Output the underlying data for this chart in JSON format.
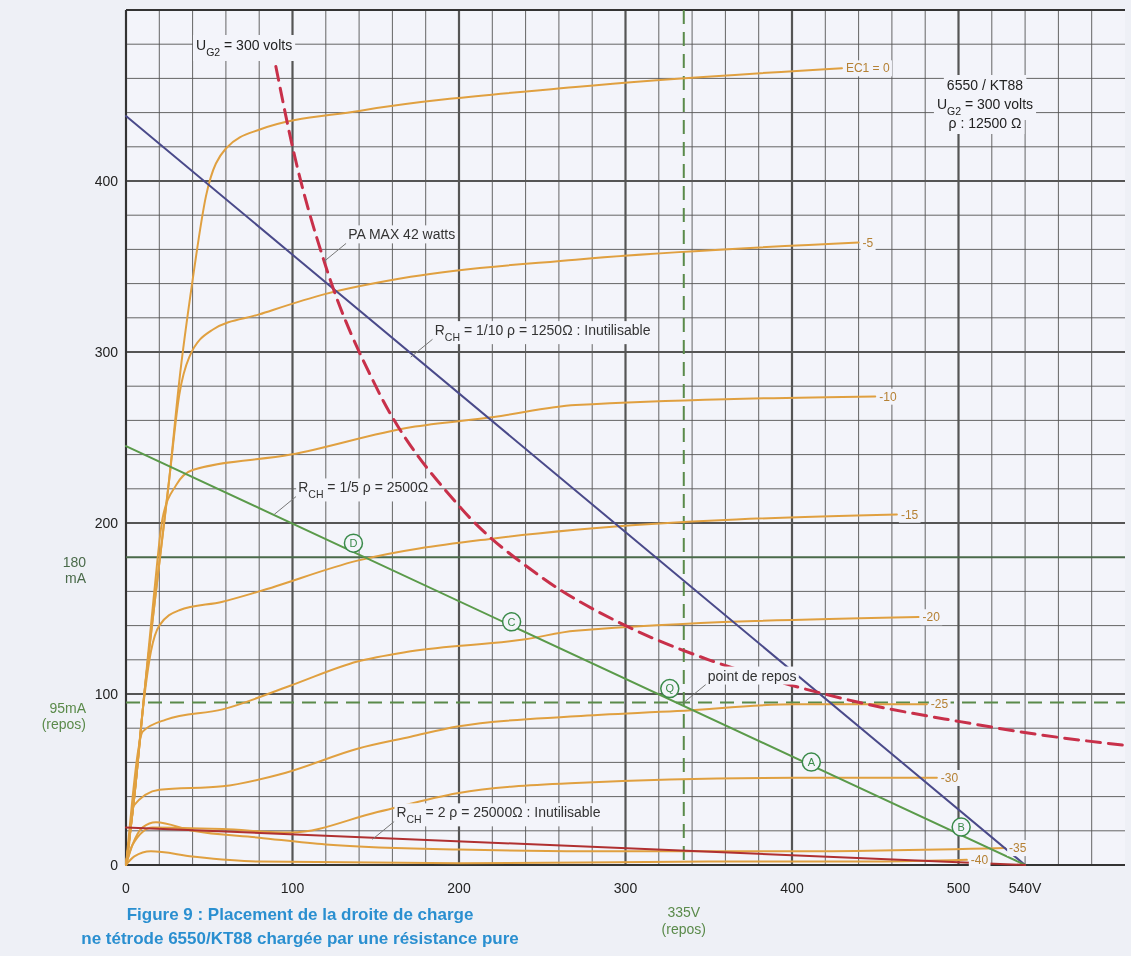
{
  "chart_data": {
    "type": "line",
    "title": "Figure 9 : Placement de la droite de charge",
    "subtitle": "ne tétrode 6550/KT88 chargée par une résistance pure",
    "xlim": [
      0,
      600
    ],
    "ylim": [
      0,
      500
    ],
    "grid": true,
    "xticks": [
      0,
      {
        "value": 20,
        "label": null
      },
      {
        "value": 40,
        "label": null
      },
      {
        "value": 60,
        "label": null
      },
      {
        "value": 80,
        "label": null
      },
      100,
      {
        "value": 120,
        "label": null
      },
      {
        "value": 140,
        "label": null
      },
      {
        "value": 160,
        "label": null
      },
      {
        "value": 180,
        "label": null
      },
      200,
      {
        "value": 220,
        "label": null
      },
      {
        "value": 240,
        "label": null
      },
      {
        "value": 260,
        "label": null
      },
      {
        "value": 280,
        "label": null
      },
      300,
      {
        "value": 320,
        "label": null
      },
      {
        "value": 340,
        "label": null
      },
      {
        "value": 360,
        "label": null
      },
      {
        "value": 380,
        "label": null
      },
      400,
      {
        "value": 420,
        "label": null
      },
      {
        "value": 440,
        "label": null
      },
      {
        "value": 460,
        "label": null
      },
      {
        "value": 480,
        "label": null
      },
      500,
      {
        "value": 520,
        "label": null
      },
      {
        "value": 540,
        "label": "540V"
      },
      {
        "value": 560,
        "label": null
      },
      {
        "value": 580,
        "label": null
      }
    ],
    "yticks": [
      0,
      {
        "value": 20,
        "label": null
      },
      {
        "value": 40,
        "label": null
      },
      {
        "value": 60,
        "label": null
      },
      {
        "value": 80,
        "label": null
      },
      100,
      {
        "value": 120,
        "label": null
      },
      {
        "value": 140,
        "label": null
      },
      {
        "value": 160,
        "label": null
      },
      {
        "value": 180,
        "label": null
      },
      200,
      {
        "value": 220,
        "label": null
      },
      {
        "value": 240,
        "label": null
      },
      {
        "value": 260,
        "label": null
      },
      {
        "value": 280,
        "label": null
      },
      300,
      {
        "value": 320,
        "label": null
      },
      {
        "value": 340,
        "label": null
      },
      {
        "value": 360,
        "label": null
      },
      {
        "value": 380,
        "label": null
      },
      400,
      {
        "value": 420,
        "label": null
      },
      {
        "value": 440,
        "label": null
      },
      {
        "value": 460,
        "label": null
      },
      {
        "value": 480,
        "label": null
      },
      {
        "value": 500,
        "label": null
      }
    ],
    "series": [
      {
        "name": "EC1 = 0",
        "color": "#e0a040",
        "x": [
          0,
          5,
          11,
          18,
          26,
          32,
          40,
          48,
          60,
          80,
          140,
          270,
          430
        ],
        "values": [
          0,
          40,
          100,
          160,
          226,
          283,
          342,
          391,
          419,
          430,
          441,
          455,
          466
        ]
      },
      {
        "name": "-5",
        "color": "#e0a040",
        "x": [
          0,
          5,
          11,
          18,
          26,
          32,
          38,
          52,
          80,
          120,
          171,
          270,
          440
        ],
        "values": [
          0,
          40,
          100,
          160,
          226,
          275,
          297,
          313,
          322,
          334,
          344,
          354,
          364
        ]
      },
      {
        "name": "-10",
        "color": "#e0a040",
        "x": [
          0,
          5,
          11,
          17,
          22,
          30,
          40,
          99,
          171,
          221,
          270,
          450
        ],
        "values": [
          0,
          40,
          100,
          160,
          203,
          222,
          231,
          240,
          256,
          262,
          269,
          274
        ]
      },
      {
        "name": "-15",
        "color": "#e0a040",
        "x": [
          0,
          5,
          10,
          15,
          20,
          32,
          58,
          80,
          139,
          221,
          270,
          463
        ],
        "values": [
          0,
          40,
          90,
          125,
          140,
          149,
          154,
          160,
          178,
          191,
          196,
          205
        ]
      },
      {
        "name": "-20",
        "color": "#e0a040",
        "x": [
          0,
          4,
          7,
          10,
          24,
          58,
          99,
          139,
          171,
          240,
          270,
          476
        ],
        "values": [
          0,
          40,
          65,
          78,
          85,
          91,
          105,
          119,
          125,
          132,
          137,
          145
        ]
      },
      {
        "name": "-25",
        "color": "#e0a040",
        "x": [
          0,
          2,
          4,
          20,
          58,
          96,
          139,
          171,
          199,
          270,
          331,
          402,
          481
        ],
        "values": [
          0,
          13,
          34,
          44,
          46,
          54,
          68,
          75,
          81,
          87,
          90,
          94,
          94
        ]
      },
      {
        "name": "-30",
        "color": "#e0a040",
        "x": [
          0,
          4,
          16,
          58,
          99,
          151,
          199,
          270,
          402,
          487
        ],
        "values": [
          0,
          12,
          22,
          21,
          19,
          31,
          42,
          48,
          51,
          51
        ]
      },
      {
        "name": "-35",
        "color": "#e0a040",
        "x": [
          0,
          4,
          10,
          18,
          40,
          80,
          120,
          200,
          300,
          400,
          528
        ],
        "values": [
          0,
          12,
          22,
          25,
          20,
          16,
          12,
          9,
          8,
          8,
          10
        ]
      },
      {
        "name": "-40",
        "color": "#e0a040",
        "x": [
          0,
          5,
          15,
          40,
          80,
          200,
          350,
          450,
          505
        ],
        "values": [
          0,
          5,
          8,
          5,
          2,
          1,
          2,
          2,
          3
        ]
      },
      {
        "color": "#4a4a8a",
        "x": [
          0,
          540
        ],
        "values": [
          438,
          0
        ]
      },
      {
        "color": "#5a9a4a",
        "x": [
          0,
          540
        ],
        "values": [
          245,
          0
        ]
      },
      {
        "color": "#b03030",
        "x": [
          0,
          540
        ],
        "values": [
          22,
          0
        ]
      },
      {
        "color": "#c8304a",
        "line_style": "dashed",
        "x": [
          90,
          100,
          120,
          150,
          200,
          250,
          300,
          350,
          400,
          450,
          500,
          550,
          600
        ],
        "values": [
          467,
          420,
          350,
          280,
          210,
          168,
          140,
          120,
          105,
          93,
          84,
          76,
          70
        ]
      }
    ],
    "ref_lines": [
      {
        "axis": "y",
        "value": 95,
        "label": "95mA (repos)",
        "color": "#5a8a4a",
        "line_style": "dashed"
      },
      {
        "axis": "x",
        "value": 335,
        "label": "335V (repos)",
        "color": "#5a8a4a",
        "line_style": "dashed"
      },
      {
        "axis": "y",
        "value": 180,
        "label": "180 mA",
        "color": "#4a6a4a",
        "line_style": "solid"
      }
    ],
    "annotations": [
      "U$_{G2}$ = 300 volts",
      "6550 / KT88\nU$_{G2}$ = 300 volts\nρ : 12500 Ω",
      {
        "text": "R$_{CH}$ = 1/10 ρ = 1250Ω : Inutilisable",
        "x": 171,
        "y": 297
      },
      {
        "text": "R$_{CH}$ = 1/5 ρ = 2500Ω",
        "x": 89,
        "y": 205
      },
      {
        "text": "R$_{CH}$ = 2 ρ = 25000Ω : Inutilisable",
        "x": 148,
        "y": 15
      },
      {
        "text": "PA MAX 42 watts",
        "x": 119,
        "y": 353
      },
      {
        "text": "point de repos",
        "x": 335,
        "y": 95
      },
      {
        "text": "D",
        "x": 145,
        "y": 180
      },
      {
        "text": "C",
        "x": 240,
        "y": 134
      },
      {
        "text": "Q",
        "x": 335,
        "y": 95
      },
      {
        "text": "A",
        "x": 420,
        "y": 52
      },
      {
        "text": "B",
        "x": 510,
        "y": 14
      }
    ]
  }
}
